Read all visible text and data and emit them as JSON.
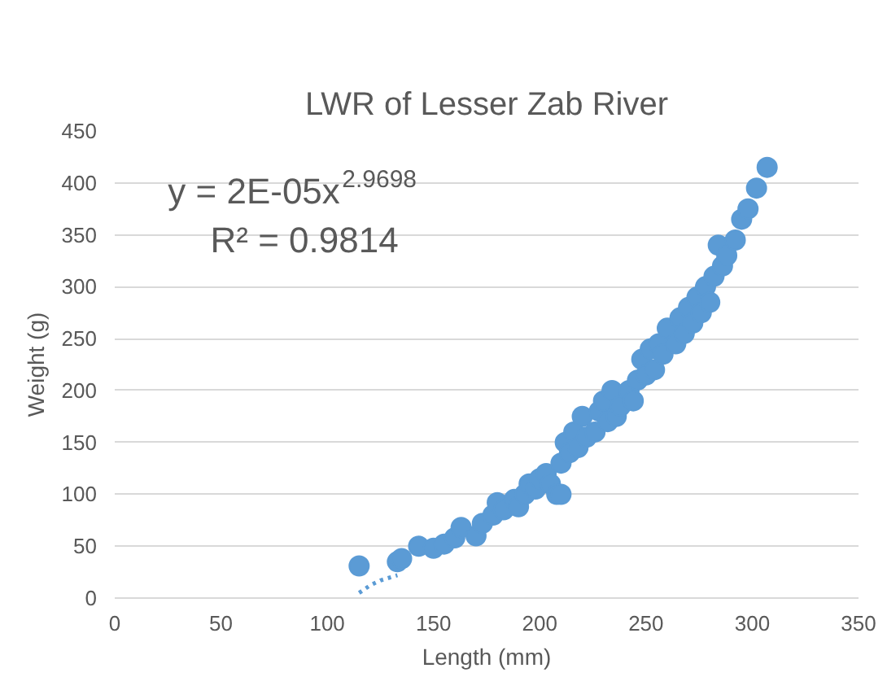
{
  "chart_data": {
    "type": "scatter",
    "title": "LWR of Lesser Zab River",
    "xlabel": "Length (mm)",
    "ylabel": "Weight (g)",
    "xlim": [
      0,
      350
    ],
    "xticks": [
      0,
      50,
      100,
      150,
      200,
      250,
      300,
      350
    ],
    "ylim": [
      0,
      450
    ],
    "yticks": [
      0,
      50,
      100,
      150,
      200,
      250,
      300,
      350,
      400,
      450
    ],
    "grid": "y",
    "annotations": [
      "y = 2E-05x$^{2.9698}$",
      "R² = 0.9814"
    ],
    "series": [
      {
        "color": "#5b9bd5",
        "marker": "circle",
        "x": [
          115,
          133,
          135,
          143,
          150,
          155,
          160,
          163,
          170,
          173,
          178,
          180,
          183,
          188,
          190,
          193,
          195,
          198,
          200,
          203,
          205,
          208,
          210,
          210,
          212,
          214,
          216,
          218,
          220,
          222,
          226,
          228,
          230,
          232,
          234,
          236,
          238,
          242,
          244,
          246,
          248,
          250,
          252,
          254,
          256,
          258,
          260,
          264,
          266,
          268,
          270,
          272,
          274,
          276,
          278,
          280,
          282,
          284,
          286,
          288,
          292,
          295,
          298,
          302,
          307
        ],
        "values": [
          31,
          35,
          38,
          50,
          48,
          52,
          58,
          68,
          60,
          72,
          80,
          92,
          85,
          95,
          88,
          100,
          110,
          105,
          115,
          120,
          110,
          100,
          130,
          100,
          150,
          140,
          160,
          145,
          175,
          155,
          160,
          180,
          190,
          170,
          200,
          175,
          185,
          200,
          190,
          210,
          230,
          215,
          240,
          220,
          245,
          235,
          260,
          245,
          270,
          255,
          280,
          265,
          290,
          275,
          300,
          285,
          310,
          340,
          320,
          330,
          345,
          365,
          375,
          395,
          415
        ]
      },
      {
        "type": "line",
        "color": "#5b9bd5",
        "line_style": "dotted",
        "x": [
          115,
          120,
          125,
          133
        ],
        "values": [
          5,
          12,
          17,
          22
        ]
      }
    ]
  }
}
